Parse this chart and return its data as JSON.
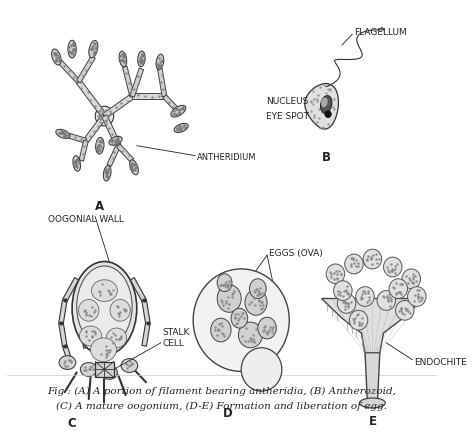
{
  "bg_color": "#ffffff",
  "caption_line1": "Fig : (A) A portion of filament bearing antheridia, (B) Antherozoid,",
  "caption_line2": "(C) A mature oogonium, (D-E) Formation and liberation of egg.",
  "label_A": "A",
  "label_B": "B",
  "label_C": "C",
  "label_D": "D",
  "label_E": "E",
  "label_antheridium": "ANTHERIDIUM",
  "label_flagellum": "FLAGELLUM",
  "label_nucleus": "NUCLEUS",
  "label_eyespot": "EYE SPOT",
  "label_oogonial_wall": "OOGONIAL WALL",
  "label_stalk_cell": "STALK\nCELL",
  "label_eggs": "EGGS (OVA)",
  "label_endochite": "ENDOCHITE",
  "line_color": "#222222",
  "caption_fontsize": 7.5,
  "label_fontsize": 6.5
}
